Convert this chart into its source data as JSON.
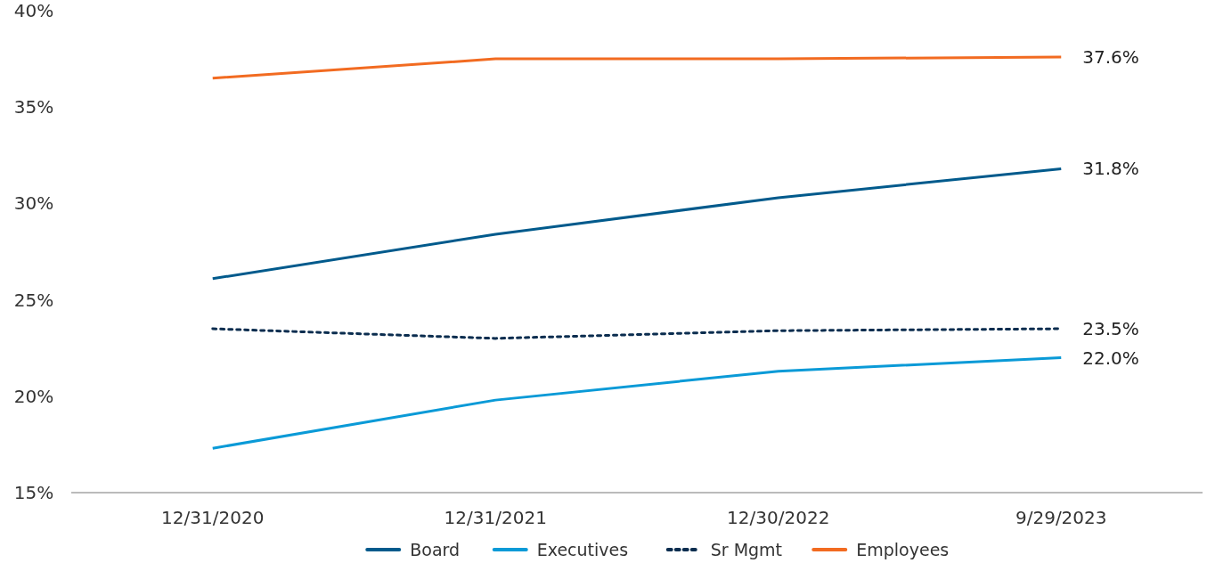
{
  "chart_data": {
    "type": "line",
    "categories": [
      "12/31/2020",
      "12/31/2021",
      "12/30/2022",
      "9/29/2023"
    ],
    "ylim": [
      15,
      40
    ],
    "yticks": [
      {
        "value": 15,
        "label": "15%"
      },
      {
        "value": 20,
        "label": "20%"
      },
      {
        "value": 25,
        "label": "25%"
      },
      {
        "value": 30,
        "label": "30%"
      },
      {
        "value": 35,
        "label": "35%"
      },
      {
        "value": 40,
        "label": "40%"
      }
    ],
    "grid": false,
    "legend": "bottom",
    "marker": "none",
    "series": [
      {
        "name": "Board",
        "color": "#005a8c",
        "values": [
          26.1,
          28.4,
          30.3,
          31.8
        ],
        "value_labels": [
          null,
          null,
          null,
          "31.8%"
        ],
        "line_style": "solid"
      },
      {
        "name": "Executives",
        "color": "#0a9ad7",
        "values": [
          17.3,
          19.8,
          21.3,
          22.0
        ],
        "value_labels": [
          null,
          null,
          null,
          "22.0%"
        ],
        "line_style": "solid"
      },
      {
        "name": "Sr Mgmt",
        "color": "#0b2d4f",
        "values": [
          23.5,
          23.0,
          23.4,
          23.5
        ],
        "value_labels": [
          null,
          null,
          null,
          "23.5%"
        ],
        "line_style": "dotted"
      },
      {
        "name": "Employees",
        "color": "#f26b21",
        "values": [
          36.5,
          37.5,
          37.5,
          37.6
        ],
        "value_labels": [
          null,
          null,
          null,
          "37.6%"
        ],
        "line_style": "solid"
      }
    ]
  }
}
